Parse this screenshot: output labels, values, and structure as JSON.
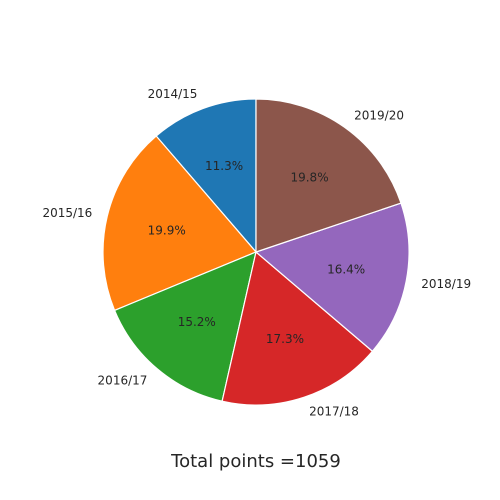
{
  "chart_data": {
    "type": "pie",
    "categories": [
      "2014/15",
      "2015/16",
      "2016/17",
      "2017/18",
      "2018/19",
      "2019/20"
    ],
    "percent_labels": [
      "11.3%",
      "19.9%",
      "15.2%",
      "17.3%",
      "16.4%",
      "19.8%"
    ],
    "values": [
      11.3,
      19.9,
      15.2,
      17.3,
      16.4,
      19.8
    ],
    "colors": [
      "#1f77b4",
      "#ff7f0e",
      "#2ca02c",
      "#d62728",
      "#9467bd",
      "#8c564b"
    ],
    "start_angle_deg": 90,
    "direction": "counterclockwise",
    "title": "",
    "xlabel": "Total points =1059",
    "legend": "none"
  }
}
